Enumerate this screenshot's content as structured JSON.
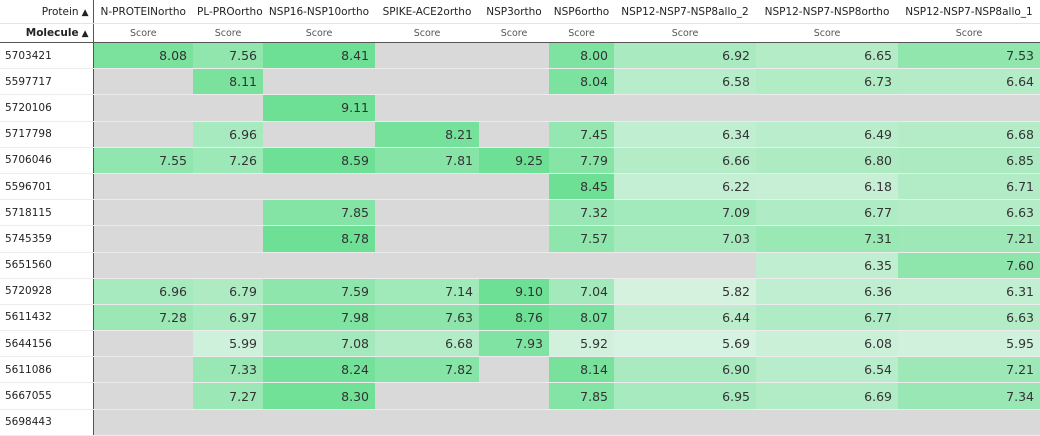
{
  "header": {
    "protein_label": "Protein",
    "molecule_label": "Molecule",
    "sort_arrow": "▲",
    "score_label": "Score",
    "columns": [
      "N-PROTEINortho",
      "PL-PROortho",
      "NSP16-NSP10ortho",
      "SPIKE-ACE2ortho",
      "NSP3ortho",
      "NSP6ortho",
      "NSP12-NSP7-NSP8allo_2",
      "NSP12-NSP7-NSP8ortho",
      "NSP12-NSP7-NSP8allo_1"
    ]
  },
  "colors": {
    "empty": "#d9d9d9",
    "scale_low": "#d6f2e0",
    "scale_high": "#6ee095"
  },
  "rows": [
    {
      "molecule": "5703421",
      "scores": [
        "8.08",
        "7.56",
        "8.41",
        "",
        "",
        "8.00",
        "6.92",
        "6.65",
        "7.53"
      ]
    },
    {
      "molecule": "5597717",
      "scores": [
        "",
        "8.11",
        "",
        "",
        "",
        "8.04",
        "6.58",
        "6.73",
        "6.64"
      ]
    },
    {
      "molecule": "5720106",
      "scores": [
        "",
        "",
        "9.11",
        "",
        "",
        "",
        "",
        "",
        ""
      ]
    },
    {
      "molecule": "5717798",
      "scores": [
        "",
        "6.96",
        "",
        "8.21",
        "",
        "7.45",
        "6.34",
        "6.49",
        "6.68"
      ]
    },
    {
      "molecule": "5706046",
      "scores": [
        "7.55",
        "7.26",
        "8.59",
        "7.81",
        "9.25",
        "7.79",
        "6.66",
        "6.80",
        "6.85"
      ]
    },
    {
      "molecule": "5596701",
      "scores": [
        "",
        "",
        "",
        "",
        "",
        "8.45",
        "6.22",
        "6.18",
        "6.71"
      ]
    },
    {
      "molecule": "5718115",
      "scores": [
        "",
        "",
        "7.85",
        "",
        "",
        "7.32",
        "7.09",
        "6.77",
        "6.63"
      ]
    },
    {
      "molecule": "5745359",
      "scores": [
        "",
        "",
        "8.78",
        "",
        "",
        "7.57",
        "7.03",
        "7.31",
        "7.21"
      ]
    },
    {
      "molecule": "5651560",
      "scores": [
        "",
        "",
        "",
        "",
        "",
        "",
        "",
        "6.35",
        "7.60"
      ]
    },
    {
      "molecule": "5720928",
      "scores": [
        "6.96",
        "6.79",
        "7.59",
        "7.14",
        "9.10",
        "7.04",
        "5.82",
        "6.36",
        "6.31"
      ]
    },
    {
      "molecule": "5611432",
      "scores": [
        "7.28",
        "6.97",
        "7.98",
        "7.63",
        "8.76",
        "8.07",
        "6.44",
        "6.77",
        "6.63"
      ]
    },
    {
      "molecule": "5644156",
      "scores": [
        "",
        "5.99",
        "7.08",
        "6.68",
        "7.93",
        "5.92",
        "5.69",
        "6.08",
        "5.95"
      ]
    },
    {
      "molecule": "5611086",
      "scores": [
        "",
        "7.33",
        "8.24",
        "7.82",
        "",
        "8.14",
        "6.90",
        "6.54",
        "7.21"
      ]
    },
    {
      "molecule": "5667055",
      "scores": [
        "",
        "7.27",
        "8.30",
        "",
        "",
        "7.85",
        "6.95",
        "6.69",
        "7.34"
      ]
    },
    {
      "molecule": "5698443",
      "scores": [
        "",
        "",
        "",
        "",
        "",
        "",
        "",
        "",
        ""
      ]
    }
  ]
}
